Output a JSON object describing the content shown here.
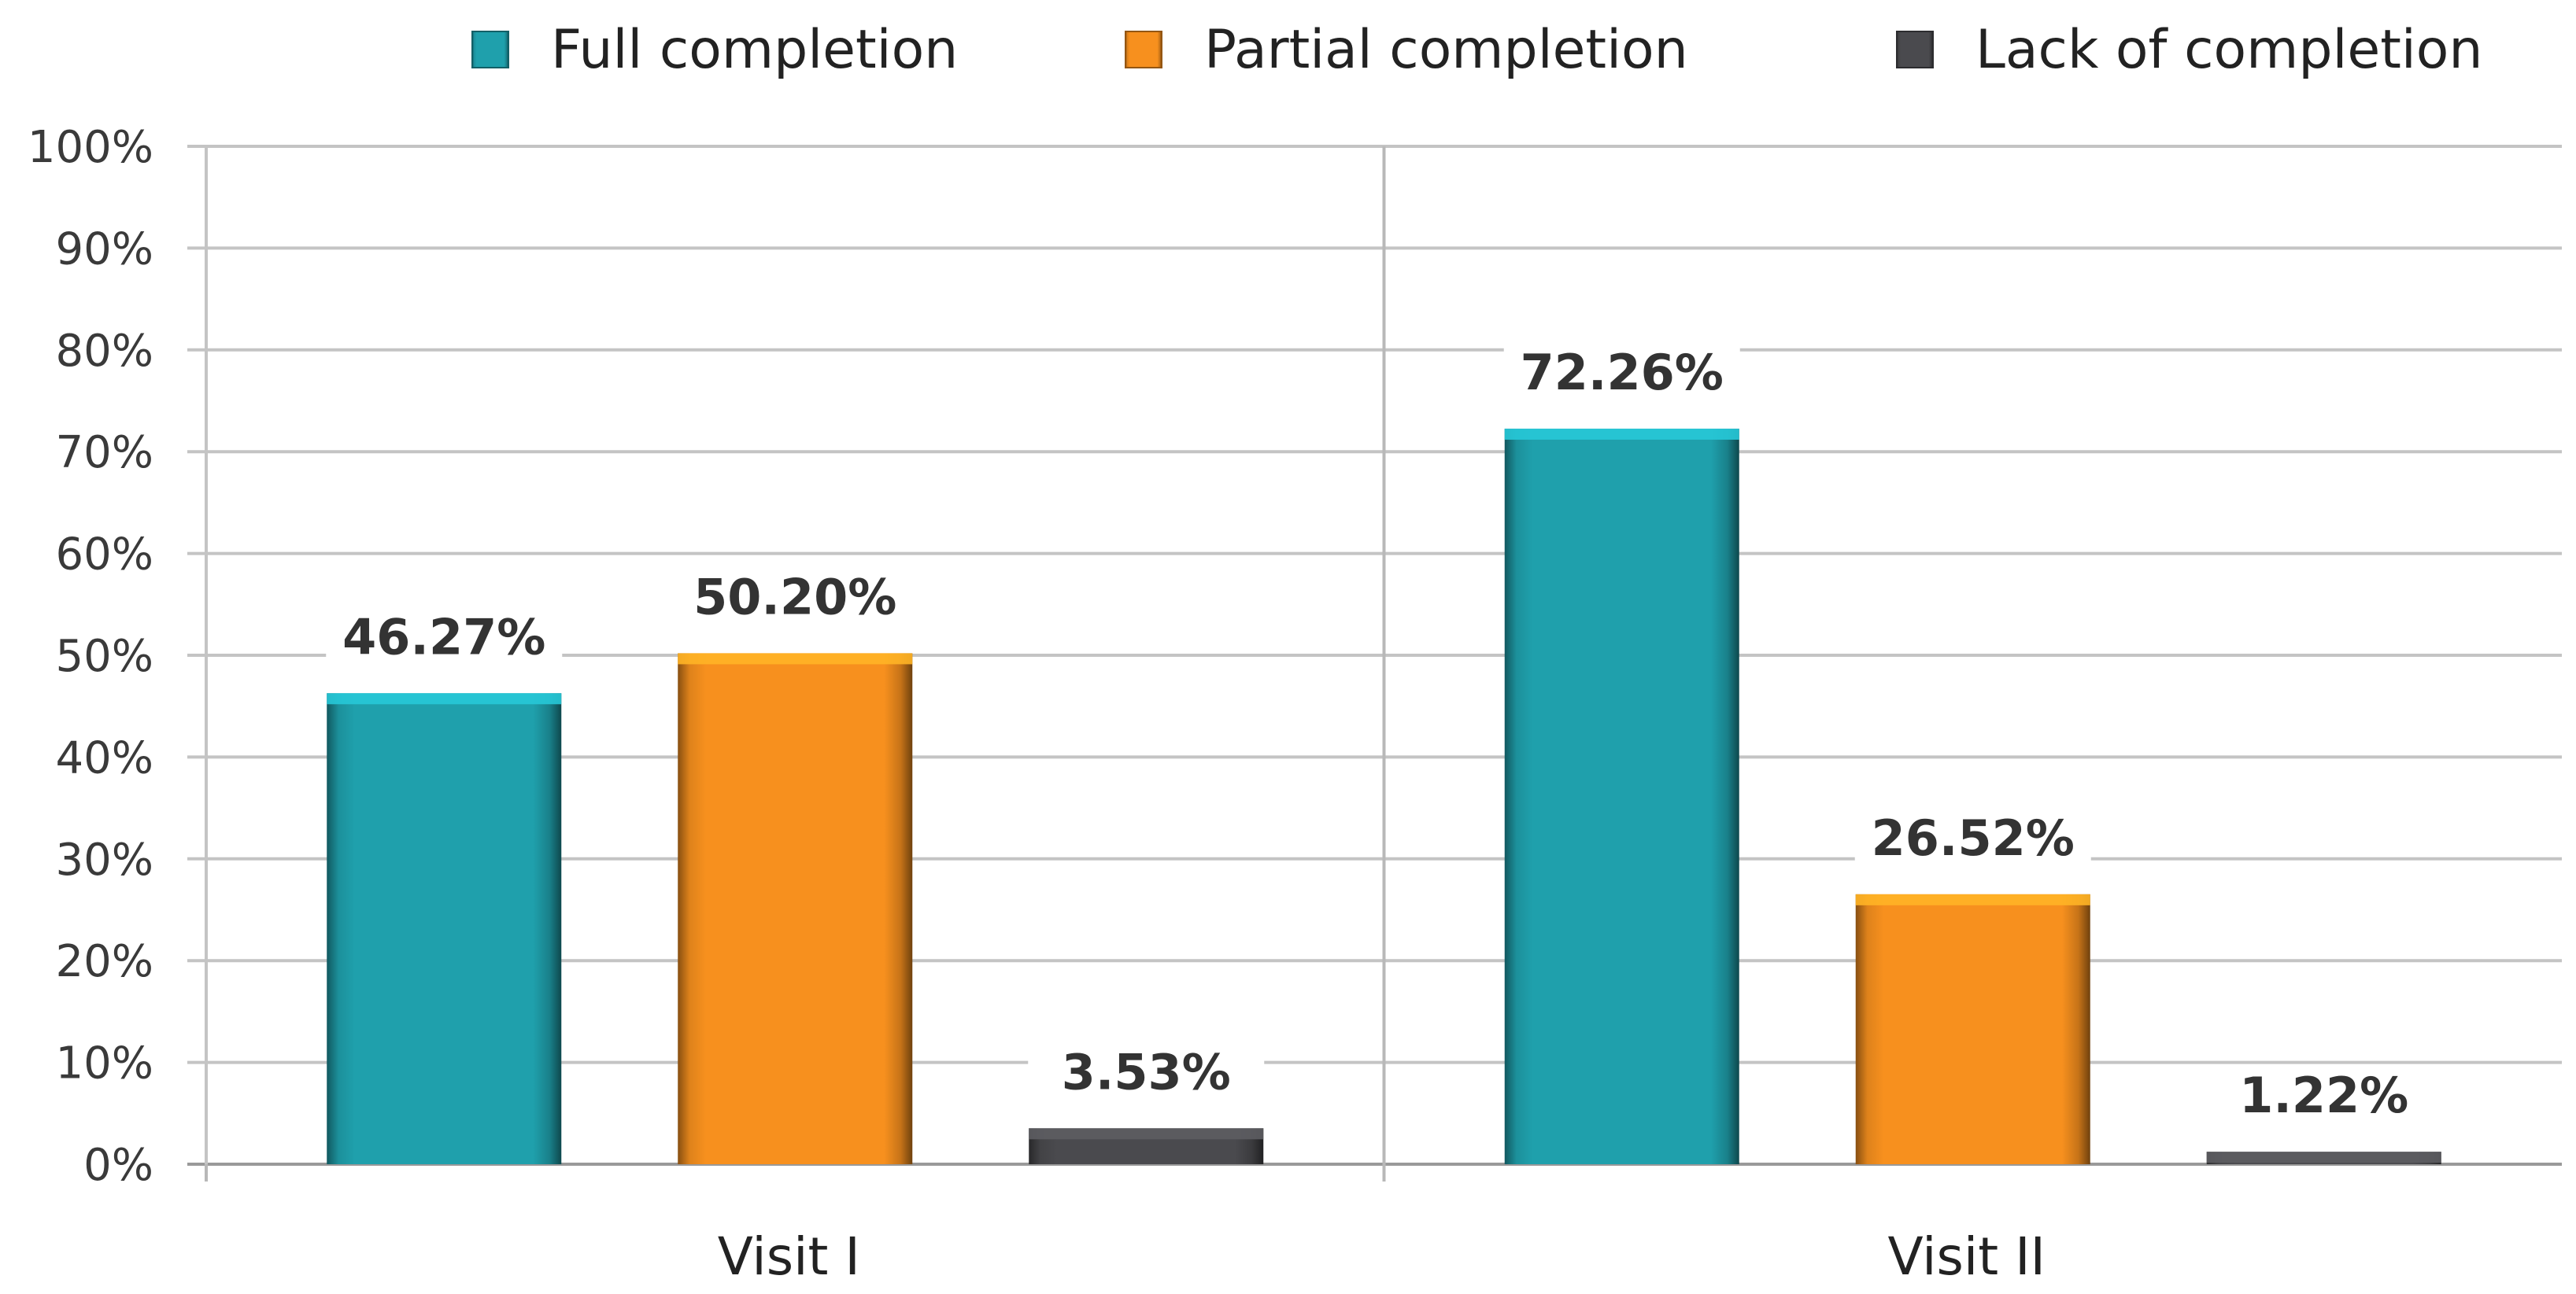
{
  "chart_data": {
    "type": "bar",
    "title": "",
    "xlabel": "",
    "ylabel": "",
    "categories": [
      "Visit I",
      "Visit II"
    ],
    "series": [
      {
        "name": "Full completion",
        "color": "#1FA0AC",
        "values": [
          46.27,
          72.26
        ],
        "labels": [
          "46.27%",
          "72.26%"
        ]
      },
      {
        "name": "Partial completion",
        "color": "#F7901E",
        "values": [
          50.2,
          26.52
        ],
        "labels": [
          "50.20%",
          "26.52%"
        ]
      },
      {
        "name": "Lack of completion",
        "color": "#4A4A4E",
        "values": [
          3.53,
          1.22
        ],
        "labels": [
          "3.53%",
          "1.22%"
        ]
      }
    ],
    "ylim": [
      0,
      100
    ],
    "yticks": [
      0,
      10,
      20,
      30,
      40,
      50,
      60,
      70,
      80,
      90,
      100
    ],
    "ytick_labels": [
      "0%",
      "10%",
      "20%",
      "30%",
      "40%",
      "50%",
      "60%",
      "70%",
      "80%",
      "90%",
      "100%"
    ],
    "grid": true,
    "legend_position": "top"
  }
}
